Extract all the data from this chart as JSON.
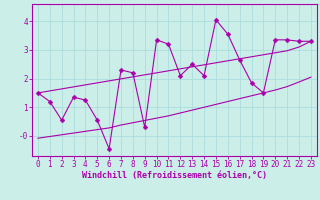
{
  "xlabel": "Windchill (Refroidissement éolien,°C)",
  "bg_color": "#cceee8",
  "grid_color": "#aadddd",
  "line_color": "#aa00aa",
  "spine_color": "#aa00aa",
  "x_data": [
    0,
    1,
    2,
    3,
    4,
    5,
    6,
    7,
    8,
    9,
    10,
    11,
    12,
    13,
    14,
    15,
    16,
    17,
    18,
    19,
    20,
    21,
    22,
    23
  ],
  "y_main": [
    1.5,
    1.2,
    0.55,
    1.35,
    1.25,
    0.55,
    -0.45,
    2.3,
    2.2,
    0.3,
    3.35,
    3.2,
    2.1,
    2.5,
    2.1,
    4.05,
    3.55,
    2.65,
    1.85,
    1.5,
    3.35,
    3.35,
    3.3,
    3.3
  ],
  "y_upper": [
    1.5,
    1.57,
    1.64,
    1.71,
    1.78,
    1.85,
    1.92,
    1.99,
    2.06,
    2.13,
    2.2,
    2.27,
    2.34,
    2.41,
    2.48,
    2.55,
    2.62,
    2.69,
    2.76,
    2.83,
    2.9,
    2.97,
    3.1,
    3.3
  ],
  "y_lower": [
    -0.08,
    -0.02,
    0.04,
    0.1,
    0.16,
    0.22,
    0.28,
    0.38,
    0.46,
    0.54,
    0.62,
    0.7,
    0.8,
    0.9,
    1.0,
    1.1,
    1.2,
    1.3,
    1.4,
    1.5,
    1.6,
    1.72,
    1.88,
    2.05
  ],
  "ylim": [
    -0.7,
    4.6
  ],
  "xlim": [
    -0.5,
    23.5
  ],
  "yticks": [
    0,
    1,
    2,
    3,
    4
  ],
  "ytick_labels": [
    "-0",
    "1",
    "2",
    "3",
    "4"
  ],
  "xticks": [
    0,
    1,
    2,
    3,
    4,
    5,
    6,
    7,
    8,
    9,
    10,
    11,
    12,
    13,
    14,
    15,
    16,
    17,
    18,
    19,
    20,
    21,
    22,
    23
  ],
  "markersize": 2.5,
  "linewidth": 0.8,
  "tick_fontsize": 5.5,
  "xlabel_fontsize": 6.0
}
